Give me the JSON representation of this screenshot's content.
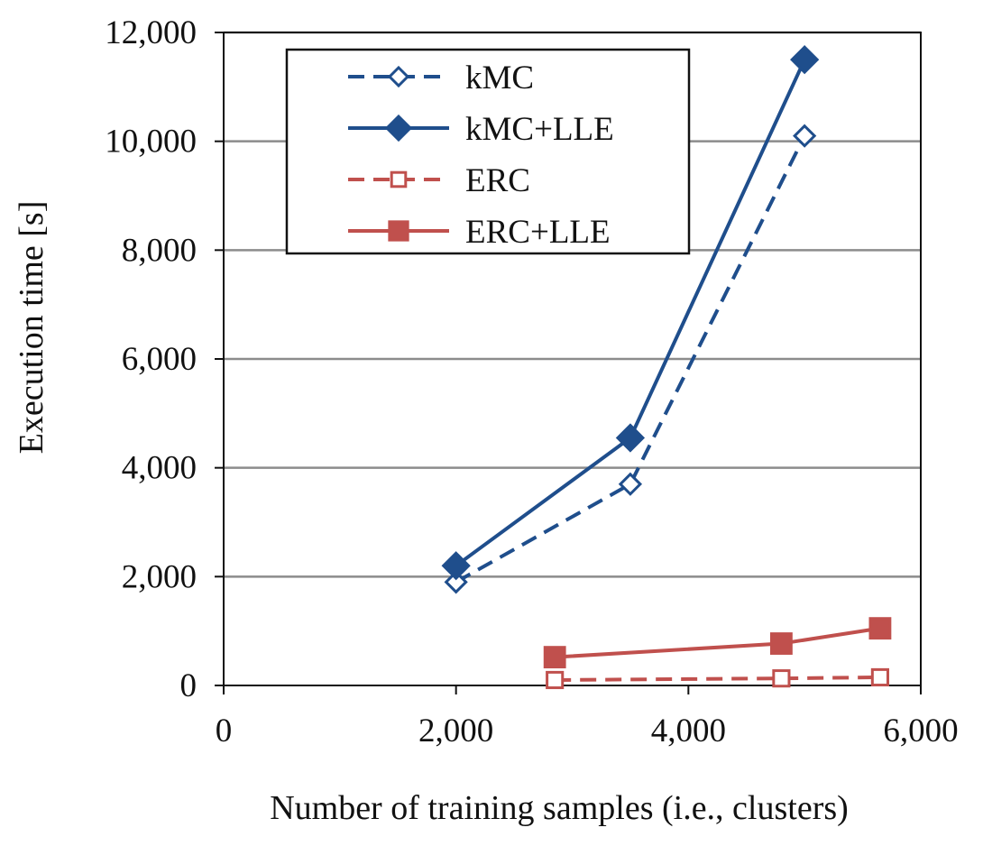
{
  "chart_data": {
    "type": "line",
    "title": "",
    "xlabel": "Number of training samples (i.e., clusters)",
    "ylabel": "Execution time [s]",
    "xlim": [
      0,
      6000
    ],
    "ylim": [
      0,
      12000
    ],
    "x_ticks": [
      0,
      2000,
      4000,
      6000
    ],
    "y_ticks": [
      0,
      2000,
      4000,
      6000,
      8000,
      10000,
      12000
    ],
    "x_tick_labels": [
      "0",
      "2,000",
      "4,000",
      "6,000"
    ],
    "y_tick_labels": [
      "0",
      "2,000",
      "4,000",
      "6,000",
      "8,000",
      "10,000",
      "12,000"
    ],
    "grid": "horizontal",
    "legend_position": "top-left",
    "series": [
      {
        "name": "kMC",
        "color": "#1f4e8c",
        "line_style": "dashed",
        "marker": "diamond-open",
        "x": [
          2000,
          3500,
          5000
        ],
        "y": [
          1900,
          3700,
          10100
        ]
      },
      {
        "name": "kMC+LLE",
        "color": "#1f4e8c",
        "line_style": "solid",
        "marker": "diamond-filled",
        "x": [
          2000,
          3500,
          5000
        ],
        "y": [
          2200,
          4550,
          11500
        ]
      },
      {
        "name": "ERC",
        "color": "#c0504d",
        "line_style": "dashed",
        "marker": "square-open",
        "x": [
          2850,
          4800,
          5650
        ],
        "y": [
          100,
          130,
          150
        ]
      },
      {
        "name": "ERC+LLE",
        "color": "#c0504d",
        "line_style": "solid",
        "marker": "square-filled",
        "x": [
          2850,
          4800,
          5650
        ],
        "y": [
          520,
          770,
          1050
        ]
      }
    ]
  }
}
